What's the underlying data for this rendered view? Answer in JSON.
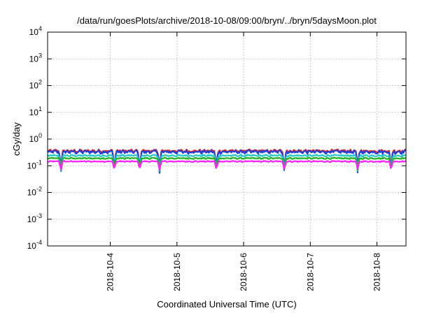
{
  "chart_data": {
    "type": "line",
    "title": "/data/run/goesPlots/archive/2018-10-08/09:00/bryn/../bryn/5daysMoon.plot",
    "xlabel": "Coordinated Universal Time (UTC)",
    "ylabel": "cGy/day",
    "yscale": "log",
    "ylim": [
      0.0001,
      10000
    ],
    "xlim": [
      0.0,
      5.375
    ],
    "grid": true,
    "y_ticks": [
      {
        "value": 0.0001,
        "base": "10",
        "exp": "-4"
      },
      {
        "value": 0.001,
        "base": "10",
        "exp": "-3"
      },
      {
        "value": 0.01,
        "base": "10",
        "exp": "-2"
      },
      {
        "value": 0.1,
        "base": "10",
        "exp": "-1"
      },
      {
        "value": 1,
        "base": "10",
        "exp": "0"
      },
      {
        "value": 10,
        "base": "10",
        "exp": "1"
      },
      {
        "value": 100,
        "base": "10",
        "exp": "2"
      },
      {
        "value": 1000,
        "base": "10",
        "exp": "3"
      },
      {
        "value": 10000,
        "base": "10",
        "exp": "4"
      }
    ],
    "x_ticks": [
      {
        "value": 0.94,
        "label": "2018-10-4"
      },
      {
        "value": 1.94,
        "label": "2018-10-5"
      },
      {
        "value": 2.94,
        "label": "2018-10-6"
      },
      {
        "value": 3.94,
        "label": "2018-10-7"
      },
      {
        "value": 4.94,
        "label": "2018-10-8"
      }
    ],
    "dips": [
      0.2,
      1.0,
      1.38,
      1.68,
      2.53,
      3.55,
      4.65,
      5.15
    ],
    "series": [
      {
        "color": "#e02020",
        "base": 0.36,
        "jitter": 0.1,
        "dip_factor": 0.85
      },
      {
        "color": "#2040e0",
        "base": 0.33,
        "jitter": 0.12,
        "dip_factor": 0.85
      },
      {
        "color": "#20c8c8",
        "base": 0.24,
        "jitter": 0.06,
        "dip_factor": 0.75
      },
      {
        "color": "#20b020",
        "base": 0.19,
        "jitter": 0.05,
        "dip_factor": 0.65
      },
      {
        "color": "#ff20ff",
        "base": 0.145,
        "jitter": 0.04,
        "dip_factor": 0.5
      }
    ]
  }
}
